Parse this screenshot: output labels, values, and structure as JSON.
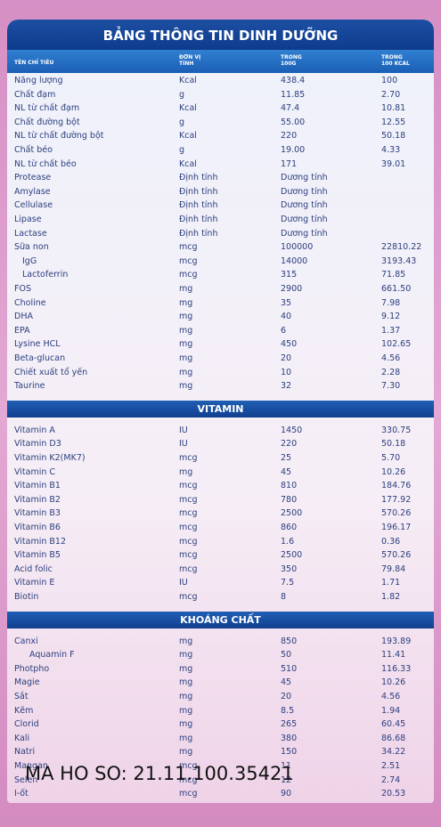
{
  "header": {
    "title": "BẢNG THÔNG TIN DINH DƯỠNG",
    "columns": [
      [
        "TÊN CHỈ TIÊU"
      ],
      [
        "ĐƠN VỊ",
        "TÍNH"
      ],
      [
        "TRONG",
        "100G"
      ],
      [
        "TRONG",
        "100 KCAL"
      ]
    ]
  },
  "sections": [
    {
      "rows": [
        {
          "cells": [
            "Năng lượng",
            "Kcal",
            "438.4",
            "100"
          ]
        },
        {
          "cells": [
            "Chất đạm",
            "g",
            "11.85",
            "2.70"
          ]
        },
        {
          "cells": [
            "NL từ chất đạm",
            "Kcal",
            "47.4",
            "10.81"
          ]
        },
        {
          "cells": [
            "Chất đường bột",
            "g",
            "55.00",
            "12.55"
          ]
        },
        {
          "cells": [
            "NL từ chất đường bột",
            "Kcal",
            "220",
            "50.18"
          ]
        },
        {
          "cells": [
            "Chất béo",
            "g",
            "19.00",
            "4.33"
          ]
        },
        {
          "cells": [
            "NL từ chất béo",
            "Kcal",
            "171",
            "39.01"
          ]
        },
        {
          "cells": [
            "Protease",
            "Định tính",
            "Dương tính"
          ]
        },
        {
          "cells": [
            "Amylase",
            "Định tính",
            "Dương tính"
          ]
        },
        {
          "cells": [
            "Cellulase",
            "Định tính",
            "Dương tính"
          ]
        },
        {
          "cells": [
            "Lipase",
            "Định tính",
            "Dương tính"
          ]
        },
        {
          "cells": [
            "Lactase",
            "Định tính",
            "Dương tính"
          ]
        },
        {
          "cells": [
            "Sữa non",
            "mcg",
            "100000",
            "22810.22"
          ]
        },
        {
          "cells": [
            "IgG",
            "mcg",
            "14000",
            "3193.43"
          ],
          "indent": true
        },
        {
          "cells": [
            "Lactoferrin",
            "mcg",
            "315",
            "71.85"
          ],
          "indent": true
        },
        {
          "cells": [
            "FOS",
            "mg",
            "2900",
            "661.50"
          ]
        },
        {
          "cells": [
            "Choline",
            "mg",
            "35",
            "7.98"
          ]
        },
        {
          "cells": [
            "DHA",
            "mg",
            "40",
            "9.12"
          ]
        },
        {
          "cells": [
            "EPA",
            "mg",
            "6",
            "1.37"
          ]
        },
        {
          "cells": [
            "Lysine HCL",
            "mg",
            "450",
            "102.65"
          ]
        },
        {
          "cells": [
            "Beta-glucan",
            "mg",
            "20",
            "4.56"
          ]
        },
        {
          "cells": [
            "Chiết xuất tổ yến",
            "mg",
            "10",
            "2.28"
          ]
        },
        {
          "cells": [
            "Taurine",
            "mg",
            "32",
            "7.30"
          ]
        }
      ]
    },
    {
      "title": "VITAMIN",
      "rows": [
        {
          "cells": [
            "Vitamin A",
            "IU",
            "1450",
            "330.75"
          ]
        },
        {
          "cells": [
            "Vitamin D3",
            "IU",
            "220",
            "50.18"
          ]
        },
        {
          "cells": [
            "Vitamin K2(MK7)",
            "mcg",
            "25",
            "5.70"
          ]
        },
        {
          "cells": [
            "Vitamin C",
            "mg",
            "45",
            "10.26"
          ]
        },
        {
          "cells": [
            "Vitamin B1",
            "mcg",
            "810",
            "184.76"
          ]
        },
        {
          "cells": [
            "Vitamin B2",
            "mcg",
            "780",
            "177.92"
          ]
        },
        {
          "cells": [
            "Vitamin B3",
            "mcg",
            "2500",
            "570.26"
          ]
        },
        {
          "cells": [
            "Vitamin B6",
            "mcg",
            "860",
            "196.17"
          ]
        },
        {
          "cells": [
            "Vitamin B12",
            "mcg",
            "1.6",
            "0.36"
          ]
        },
        {
          "cells": [
            "Vitamin B5",
            "mcg",
            "2500",
            "570.26"
          ]
        },
        {
          "cells": [
            "Acid folic",
            "mcg",
            "350",
            "79.84"
          ]
        },
        {
          "cells": [
            "Vitamin E",
            "IU",
            "7.5",
            "1.71"
          ]
        },
        {
          "cells": [
            "Biotin",
            "mcg",
            "8",
            "1.82"
          ]
        }
      ]
    },
    {
      "title": "KHOÁNG CHẤT",
      "rows": [
        {
          "cells": [
            "Canxi",
            "mg",
            "850",
            "193.89"
          ]
        },
        {
          "cells": [
            "Aquamin F",
            "mg",
            "50",
            "11.41"
          ],
          "indent": true
        },
        {
          "cells": [
            "Photpho",
            "mg",
            "510",
            "116.33"
          ]
        },
        {
          "cells": [
            "Magie",
            "mg",
            "45",
            "10.26"
          ]
        },
        {
          "cells": [
            "Sắt",
            "mg",
            "20",
            "4.56"
          ]
        },
        {
          "cells": [
            "Kẽm",
            "mg",
            "8.5",
            "1.94"
          ]
        },
        {
          "cells": [
            "Clorid",
            "mg",
            "265",
            "60.45"
          ]
        },
        {
          "cells": [
            "Kali",
            "mg",
            "380",
            "86.68"
          ]
        },
        {
          "cells": [
            "Natri",
            "mg",
            "150",
            "34.22"
          ]
        },
        {
          "cells": [
            "Mangan",
            "mcg",
            "11",
            "2.51"
          ]
        },
        {
          "cells": [
            "Selen",
            "mcg",
            "12",
            "2.74"
          ]
        },
        {
          "cells": [
            "I-ốt",
            "mcg",
            "90",
            "20.53"
          ]
        }
      ]
    }
  ],
  "watermark": "MA HO SO: 21.11.100.35421"
}
